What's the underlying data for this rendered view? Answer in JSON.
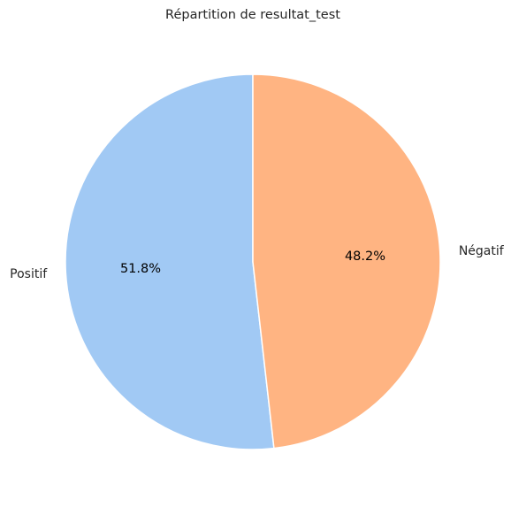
{
  "chart_data": {
    "type": "pie",
    "title": "Répartition de resultat_test",
    "categories": [
      "Positif",
      "Négatif"
    ],
    "values": [
      51.8,
      48.2
    ],
    "labels_pct": [
      "51.8%",
      "48.2%"
    ],
    "colors": [
      "#a1c9f4",
      "#ffb482"
    ],
    "start_angle_deg": 90,
    "direction": "counterclockwise",
    "legend": "none"
  }
}
